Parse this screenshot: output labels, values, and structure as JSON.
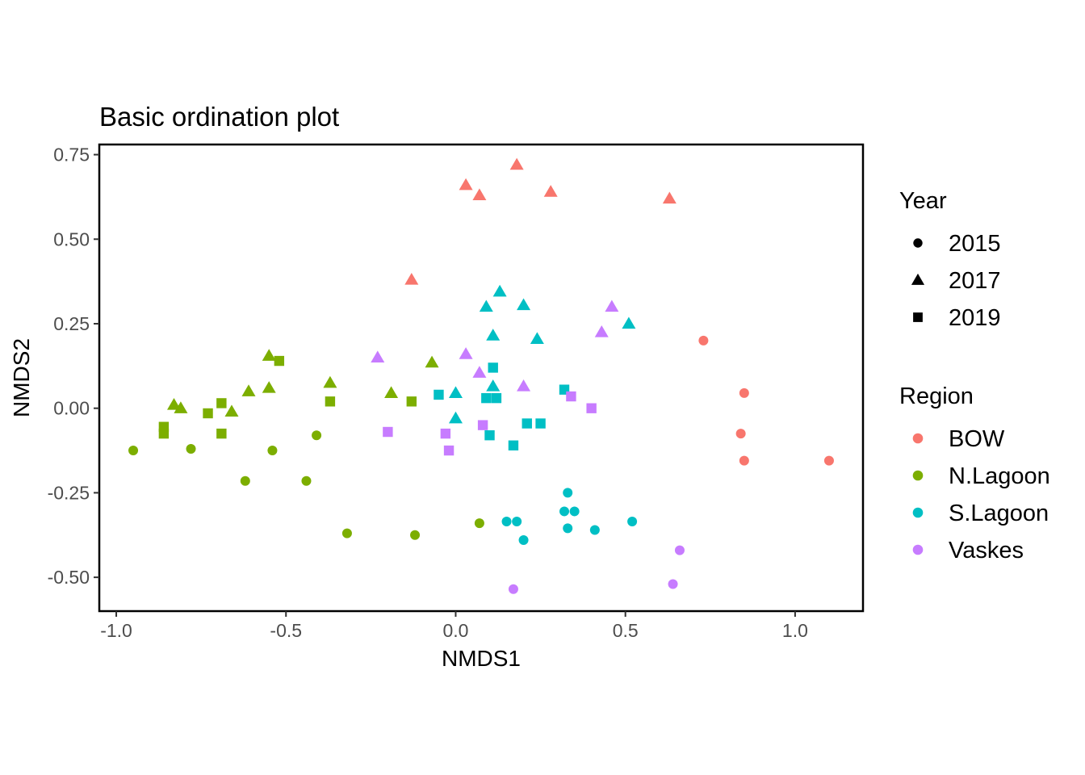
{
  "chart_data": {
    "type": "scatter",
    "title": "Basic ordination plot",
    "xlabel": "NMDS1",
    "ylabel": "NMDS2",
    "xlim": [
      -1.05,
      1.2
    ],
    "ylim": [
      -0.6,
      0.78
    ],
    "xticks": [
      -1.0,
      -0.5,
      0.0,
      0.5,
      1.0
    ],
    "xtick_labels": [
      "-1.0",
      "-0.5",
      "0.0",
      "0.5",
      "1.0"
    ],
    "yticks": [
      -0.5,
      -0.25,
      0.0,
      0.25,
      0.5,
      0.75
    ],
    "ytick_labels": [
      "-0.50",
      "-0.25",
      "0.00",
      "0.25",
      "0.50",
      "0.75"
    ],
    "grid": false,
    "legend_position": "right",
    "legends": {
      "year": {
        "title": "Year",
        "items": [
          {
            "label": "2015",
            "shape": "circle"
          },
          {
            "label": "2017",
            "shape": "triangle"
          },
          {
            "label": "2019",
            "shape": "square"
          }
        ]
      },
      "region": {
        "title": "Region",
        "items": [
          {
            "label": "BOW",
            "color": "#F8766D"
          },
          {
            "label": "N.Lagoon",
            "color": "#7CAE00"
          },
          {
            "label": "S.Lagoon",
            "color": "#00BFC4"
          },
          {
            "label": "Vaskes",
            "color": "#C77CFF"
          }
        ]
      }
    },
    "series": [
      {
        "name": "BOW",
        "color": "#F8766D",
        "points": [
          {
            "x": 0.73,
            "y": 0.2,
            "year": "2015"
          },
          {
            "x": 0.85,
            "y": 0.045,
            "year": "2015"
          },
          {
            "x": 0.84,
            "y": -0.075,
            "year": "2015"
          },
          {
            "x": 0.85,
            "y": -0.155,
            "year": "2015"
          },
          {
            "x": 1.1,
            "y": -0.155,
            "year": "2015"
          },
          {
            "x": 0.18,
            "y": 0.72,
            "year": "2017"
          },
          {
            "x": 0.03,
            "y": 0.66,
            "year": "2017"
          },
          {
            "x": 0.07,
            "y": 0.63,
            "year": "2017"
          },
          {
            "x": 0.28,
            "y": 0.64,
            "year": "2017"
          },
          {
            "x": 0.63,
            "y": 0.62,
            "year": "2017"
          },
          {
            "x": -0.13,
            "y": 0.38,
            "year": "2017"
          }
        ]
      },
      {
        "name": "N.Lagoon",
        "color": "#7CAE00",
        "points": [
          {
            "x": -0.95,
            "y": -0.125,
            "year": "2015"
          },
          {
            "x": -0.78,
            "y": -0.12,
            "year": "2015"
          },
          {
            "x": -0.54,
            "y": -0.125,
            "year": "2015"
          },
          {
            "x": -0.41,
            "y": -0.08,
            "year": "2015"
          },
          {
            "x": -0.62,
            "y": -0.215,
            "year": "2015"
          },
          {
            "x": -0.44,
            "y": -0.215,
            "year": "2015"
          },
          {
            "x": -0.32,
            "y": -0.37,
            "year": "2015"
          },
          {
            "x": -0.12,
            "y": -0.375,
            "year": "2015"
          },
          {
            "x": 0.07,
            "y": -0.34,
            "year": "2015"
          },
          {
            "x": -0.83,
            "y": 0.01,
            "year": "2017"
          },
          {
            "x": -0.81,
            "y": 0.0,
            "year": "2017"
          },
          {
            "x": -0.66,
            "y": -0.01,
            "year": "2017"
          },
          {
            "x": -0.61,
            "y": 0.05,
            "year": "2017"
          },
          {
            "x": -0.55,
            "y": 0.155,
            "year": "2017"
          },
          {
            "x": -0.55,
            "y": 0.06,
            "year": "2017"
          },
          {
            "x": -0.37,
            "y": 0.075,
            "year": "2017"
          },
          {
            "x": -0.19,
            "y": 0.045,
            "year": "2017"
          },
          {
            "x": -0.07,
            "y": 0.135,
            "year": "2017"
          },
          {
            "x": -0.52,
            "y": 0.14,
            "year": "2019"
          },
          {
            "x": -0.86,
            "y": -0.055,
            "year": "2019"
          },
          {
            "x": -0.86,
            "y": -0.075,
            "year": "2019"
          },
          {
            "x": -0.73,
            "y": -0.015,
            "year": "2019"
          },
          {
            "x": -0.69,
            "y": 0.015,
            "year": "2019"
          },
          {
            "x": -0.69,
            "y": -0.075,
            "year": "2019"
          },
          {
            "x": -0.37,
            "y": 0.02,
            "year": "2019"
          },
          {
            "x": -0.13,
            "y": 0.02,
            "year": "2019"
          }
        ]
      },
      {
        "name": "S.Lagoon",
        "color": "#00BFC4",
        "points": [
          {
            "x": 0.33,
            "y": -0.25,
            "year": "2015"
          },
          {
            "x": 0.32,
            "y": -0.305,
            "year": "2015"
          },
          {
            "x": 0.35,
            "y": -0.305,
            "year": "2015"
          },
          {
            "x": 0.15,
            "y": -0.335,
            "year": "2015"
          },
          {
            "x": 0.18,
            "y": -0.335,
            "year": "2015"
          },
          {
            "x": 0.33,
            "y": -0.355,
            "year": "2015"
          },
          {
            "x": 0.41,
            "y": -0.36,
            "year": "2015"
          },
          {
            "x": 0.52,
            "y": -0.335,
            "year": "2015"
          },
          {
            "x": 0.2,
            "y": -0.39,
            "year": "2015"
          },
          {
            "x": 0.13,
            "y": 0.345,
            "year": "2017"
          },
          {
            "x": 0.09,
            "y": 0.3,
            "year": "2017"
          },
          {
            "x": 0.2,
            "y": 0.305,
            "year": "2017"
          },
          {
            "x": 0.11,
            "y": 0.215,
            "year": "2017"
          },
          {
            "x": 0.24,
            "y": 0.205,
            "year": "2017"
          },
          {
            "x": 0.51,
            "y": 0.25,
            "year": "2017"
          },
          {
            "x": 0.11,
            "y": 0.065,
            "year": "2017"
          },
          {
            "x": 0.0,
            "y": 0.045,
            "year": "2017"
          },
          {
            "x": 0.0,
            "y": -0.03,
            "year": "2017"
          },
          {
            "x": 0.11,
            "y": 0.12,
            "year": "2019"
          },
          {
            "x": -0.05,
            "y": 0.04,
            "year": "2019"
          },
          {
            "x": 0.09,
            "y": 0.03,
            "year": "2019"
          },
          {
            "x": 0.12,
            "y": 0.03,
            "year": "2019"
          },
          {
            "x": 0.32,
            "y": 0.055,
            "year": "2019"
          },
          {
            "x": 0.21,
            "y": -0.045,
            "year": "2019"
          },
          {
            "x": 0.25,
            "y": -0.045,
            "year": "2019"
          },
          {
            "x": 0.1,
            "y": -0.08,
            "year": "2019"
          },
          {
            "x": 0.17,
            "y": -0.11,
            "year": "2019"
          }
        ]
      },
      {
        "name": "Vaskes",
        "color": "#C77CFF",
        "points": [
          {
            "x": 0.66,
            "y": -0.42,
            "year": "2015"
          },
          {
            "x": 0.64,
            "y": -0.52,
            "year": "2015"
          },
          {
            "x": 0.17,
            "y": -0.535,
            "year": "2015"
          },
          {
            "x": 0.46,
            "y": 0.3,
            "year": "2017"
          },
          {
            "x": 0.43,
            "y": 0.225,
            "year": "2017"
          },
          {
            "x": -0.23,
            "y": 0.15,
            "year": "2017"
          },
          {
            "x": 0.03,
            "y": 0.16,
            "year": "2017"
          },
          {
            "x": 0.07,
            "y": 0.105,
            "year": "2017"
          },
          {
            "x": 0.2,
            "y": 0.065,
            "year": "2017"
          },
          {
            "x": 0.34,
            "y": 0.035,
            "year": "2019"
          },
          {
            "x": 0.4,
            "y": 0.0,
            "year": "2019"
          },
          {
            "x": 0.08,
            "y": -0.05,
            "year": "2019"
          },
          {
            "x": -0.2,
            "y": -0.07,
            "year": "2019"
          },
          {
            "x": -0.03,
            "y": -0.075,
            "year": "2019"
          },
          {
            "x": -0.02,
            "y": -0.125,
            "year": "2019"
          }
        ]
      }
    ]
  }
}
